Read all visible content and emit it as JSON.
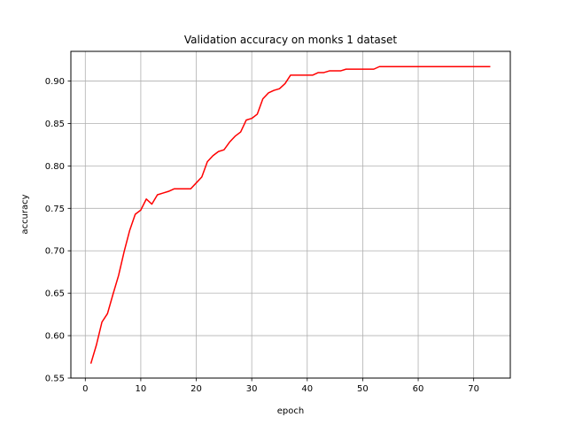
{
  "chart_data": {
    "type": "line",
    "title": "Validation accuracy on monks 1 dataset",
    "xlabel": "epoch",
    "ylabel": "accuracy",
    "xlim": [
      -2.6,
      76.6
    ],
    "ylim": [
      0.55,
      0.935
    ],
    "xticks": [
      0,
      10,
      20,
      30,
      40,
      50,
      60,
      70
    ],
    "yticks": [
      0.55,
      0.6,
      0.65,
      0.7,
      0.75,
      0.8,
      0.85,
      0.9
    ],
    "ytick_labels": [
      "0.55",
      "0.60",
      "0.65",
      "0.70",
      "0.75",
      "0.80",
      "0.85",
      "0.90"
    ],
    "grid": true,
    "series": [
      {
        "color": "#ff0000",
        "x": [
          1,
          2,
          3,
          4,
          5,
          6,
          7,
          8,
          9,
          10,
          11,
          12,
          13,
          14,
          15,
          16,
          17,
          18,
          19,
          20,
          21,
          22,
          23,
          24,
          25,
          26,
          27,
          28,
          29,
          30,
          31,
          32,
          33,
          34,
          35,
          36,
          37,
          38,
          39,
          40,
          41,
          42,
          43,
          44,
          45,
          46,
          47,
          48,
          49,
          50,
          51,
          52,
          53,
          54,
          55,
          56,
          57,
          58,
          59,
          60,
          61,
          62,
          63,
          64,
          65,
          66,
          67,
          68,
          69,
          70,
          71,
          72,
          73
        ],
        "y": [
          0.567,
          0.589,
          0.616,
          0.626,
          0.649,
          0.671,
          0.699,
          0.724,
          0.743,
          0.748,
          0.761,
          0.755,
          0.766,
          0.768,
          0.77,
          0.773,
          0.773,
          0.773,
          0.773,
          0.78,
          0.787,
          0.805,
          0.812,
          0.817,
          0.819,
          0.828,
          0.835,
          0.84,
          0.854,
          0.856,
          0.861,
          0.879,
          0.886,
          0.889,
          0.891,
          0.897,
          0.907,
          0.907,
          0.907,
          0.907,
          0.907,
          0.91,
          0.91,
          0.912,
          0.912,
          0.912,
          0.914,
          0.914,
          0.914,
          0.914,
          0.914,
          0.914,
          0.917,
          0.917,
          0.917,
          0.917,
          0.917,
          0.917,
          0.917,
          0.917,
          0.917,
          0.917,
          0.917,
          0.917,
          0.917,
          0.917,
          0.917,
          0.917,
          0.917,
          0.917,
          0.917,
          0.917,
          0.917
        ]
      }
    ]
  }
}
